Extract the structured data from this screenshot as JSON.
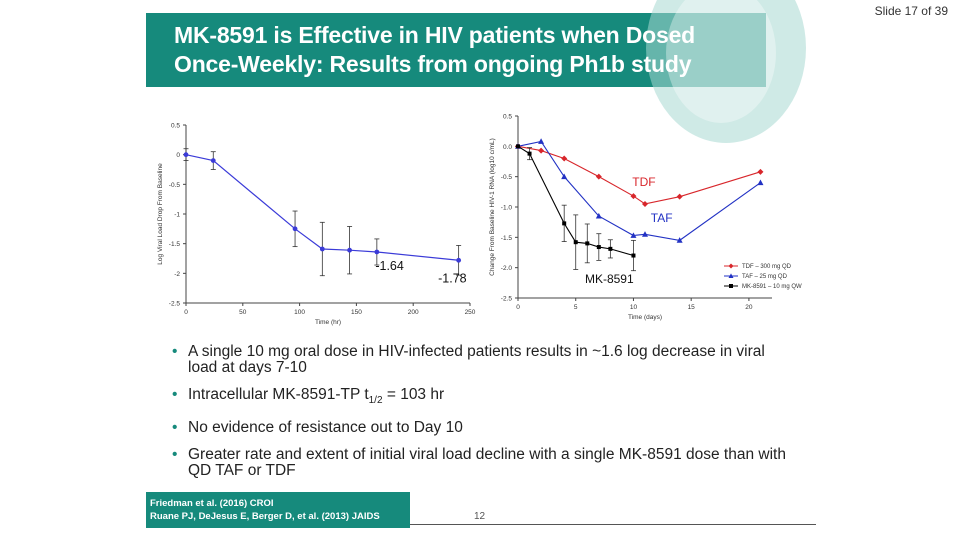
{
  "slide_counter": "Slide 17 of 39",
  "title": {
    "line1": "MK-8591 is Effective in HIV patients when Dosed",
    "line2": "Once-Weekly: Results from ongoing Ph1b study"
  },
  "chart_data": [
    {
      "type": "line",
      "title": "",
      "xlabel": "Time (hr)",
      "ylabel": "Log Viral Load Drop From Baseline",
      "xlim": [
        0,
        250
      ],
      "ylim": [
        -2.5,
        0.5
      ],
      "xticks": [
        0,
        50,
        100,
        150,
        200,
        250
      ],
      "yticks": [
        0.5,
        0,
        -0.5,
        -1,
        -1.5,
        -2,
        -2.5
      ],
      "ytick_labels": [
        "0.5",
        "0",
        "-0.5",
        "-1",
        "-1.5",
        "-2",
        "-2.5"
      ],
      "series": [
        {
          "name": "MK-8591",
          "color": "#3b3bd8",
          "x": [
            0,
            24,
            96,
            120,
            144,
            168,
            240
          ],
          "y": [
            0,
            -0.1,
            -1.25,
            -1.59,
            -1.61,
            -1.64,
            -1.78
          ],
          "err": [
            0.1,
            0.15,
            0.3,
            0.45,
            0.4,
            0.22,
            0.25
          ]
        }
      ],
      "annotations": [
        {
          "text": "-1.64",
          "x": 168,
          "y": -1.64
        },
        {
          "text": "-1.78",
          "x": 240,
          "y": -1.78
        }
      ]
    },
    {
      "type": "line",
      "title": "",
      "xlabel": "Time (days)",
      "ylabel": "Change From Baseline HIV-1 RNA (log10 c/mL)",
      "xlim": [
        0,
        22
      ],
      "ylim": [
        -2.5,
        0.5
      ],
      "xticks": [
        0,
        5,
        10,
        15,
        20
      ],
      "yticks": [
        0.5,
        0,
        -0.5,
        -1,
        -1.5,
        -2,
        -2.5
      ],
      "ytick_labels": [
        "0.5",
        "0.0",
        "-0.5",
        "-1.0",
        "-1.5",
        "-2.0",
        "-2.5"
      ],
      "series": [
        {
          "name": "TDF",
          "legend": "TDF – 300 mg QD",
          "color": "#d8262b",
          "marker": "diamond",
          "x": [
            0,
            2,
            4,
            7,
            10,
            11,
            14,
            21
          ],
          "y": [
            0,
            -0.07,
            -0.2,
            -0.5,
            -0.82,
            -0.95,
            -0.83,
            -0.42
          ]
        },
        {
          "name": "TAF",
          "legend": "TAF – 25 mg QD",
          "color": "#2232c4",
          "marker": "triangle",
          "x": [
            0,
            2,
            4,
            7,
            10,
            11,
            14,
            21
          ],
          "y": [
            0,
            0.08,
            -0.5,
            -1.15,
            -1.47,
            -1.45,
            -1.55,
            -0.6
          ]
        },
        {
          "name": "MK-8591",
          "legend": "MK-8591 – 10 mg QW",
          "color": "#000000",
          "marker": "square",
          "x": [
            0,
            1,
            4,
            5,
            6,
            7,
            8,
            10
          ],
          "y": [
            0,
            -0.12,
            -1.27,
            -1.58,
            -1.6,
            -1.66,
            -1.69,
            -1.8
          ],
          "err": [
            0,
            0.1,
            0.3,
            0.45,
            0.32,
            0.22,
            0.15,
            0.25
          ]
        }
      ],
      "annotations": [
        {
          "text": "TDF",
          "series": "TDF"
        },
        {
          "text": "TAF",
          "series": "TAF"
        },
        {
          "text": "MK-8591",
          "series": "MK-8591"
        }
      ],
      "legend_position": "lower-right"
    }
  ],
  "bullets": [
    {
      "text": "A single 10 mg oral dose in HIV-infected patients results in ~1.6 log decrease in viral load at days 7-10"
    },
    {
      "text_before": "Intracellular MK-8591-TP t",
      "subscript": "1/2",
      "text_after": " = 103 hr"
    },
    {
      "text": "No evidence of resistance out to Day 10"
    },
    {
      "text": "Greater rate and extent of initial viral load decline with a single MK-8591 dose than with QD TAF or TDF"
    }
  ],
  "bullet_symbol": "•",
  "references": {
    "line1": "Friedman et al. (2016) CROI",
    "line2": "Ruane PJ, DeJesus E, Berger D, et al. (2013) JAIDS"
  },
  "page_number": "12"
}
